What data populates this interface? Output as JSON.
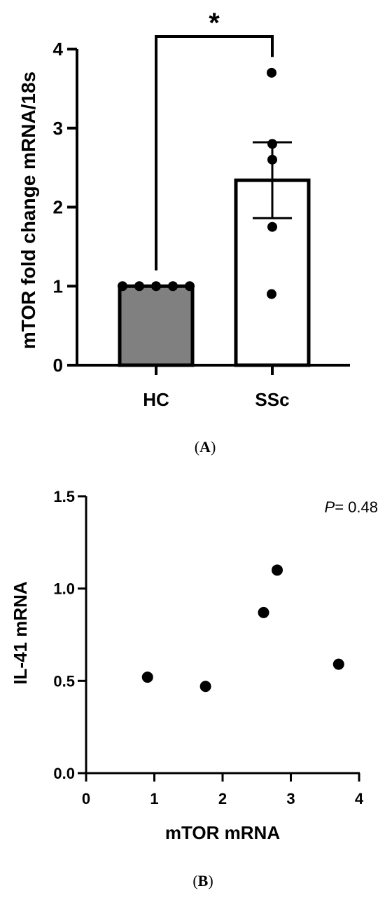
{
  "chart_data": [
    {
      "type": "bar",
      "panel_label": "(A)",
      "panel_label_letter": "A",
      "ylabel": "mTOR fold change mRNA/18s",
      "ylim": [
        0,
        4
      ],
      "yticks": [
        "0",
        "1",
        "2",
        "3",
        "4"
      ],
      "categories": [
        "HC",
        "SSc"
      ],
      "values": [
        1.0,
        2.34
      ],
      "error_sem": [
        0.0,
        0.48
      ],
      "bar_colors": [
        "#808080",
        "#ffffff"
      ],
      "points": [
        [
          1.0,
          1.0,
          1.0,
          1.0,
          1.0
        ],
        [
          3.7,
          2.8,
          2.6,
          1.75,
          0.9
        ]
      ],
      "significance": {
        "between": [
          "HC",
          "SSc"
        ],
        "label": "*"
      }
    },
    {
      "type": "scatter",
      "panel_label": "(B)",
      "panel_label_letter": "B",
      "xlabel": "mTOR mRNA",
      "ylabel": "IL-41 mRNA",
      "xlim": [
        0,
        4
      ],
      "ylim": [
        0,
        1.5
      ],
      "xticks": [
        "0",
        "1",
        "2",
        "3",
        "4"
      ],
      "yticks": [
        "0.0",
        "0.5",
        "1.0",
        "1.5"
      ],
      "x": [
        0.9,
        1.75,
        2.6,
        2.8,
        3.7
      ],
      "y": [
        0.52,
        0.47,
        0.87,
        1.1,
        0.59
      ],
      "annotation": {
        "italic": "P",
        "text": "= 0.48"
      }
    }
  ]
}
